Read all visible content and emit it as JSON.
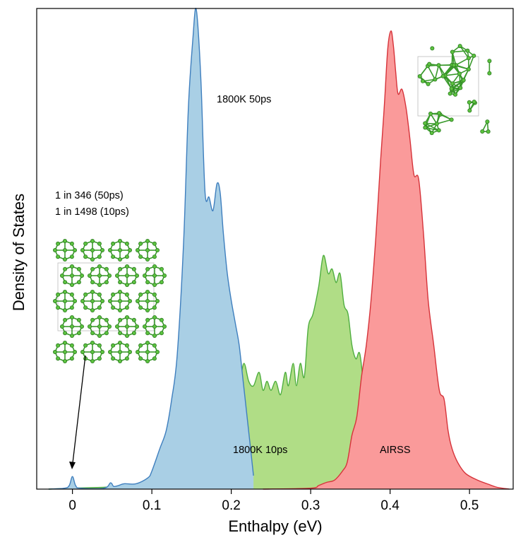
{
  "chart_data": {
    "type": "area",
    "xlabel": "Enthalpy (eV)",
    "ylabel": "Density of States",
    "xlim": [
      -0.045,
      0.555
    ],
    "ylim": [
      0,
      1.07
    ],
    "xticks": [
      0,
      0.1,
      0.2,
      0.3,
      0.4,
      0.5
    ],
    "xtick_labels": [
      "0",
      "0.1",
      "0.2",
      "0.3",
      "0.4",
      "0.5"
    ],
    "show_yticks": false,
    "series": [
      {
        "name": "1800K 10ps",
        "color": "#b0dd86",
        "stroke": "#4fae3f",
        "x": [
          -0.03,
          0.0,
          0.05,
          0.08,
          0.1,
          0.115,
          0.13,
          0.145,
          0.158,
          0.165,
          0.172,
          0.178,
          0.184,
          0.19,
          0.197,
          0.203,
          0.21,
          0.216,
          0.222,
          0.228,
          0.235,
          0.24,
          0.245,
          0.25,
          0.256,
          0.262,
          0.268,
          0.272,
          0.278,
          0.282,
          0.287,
          0.292,
          0.297,
          0.303,
          0.31,
          0.316,
          0.322,
          0.327,
          0.332,
          0.337,
          0.342,
          0.347,
          0.352,
          0.357,
          0.362,
          0.368,
          0.372,
          0.376
        ],
        "y": [
          0,
          0.002,
          0.005,
          0.01,
          0.015,
          0.03,
          0.06,
          0.2,
          0.31,
          0.3,
          0.27,
          0.3,
          0.29,
          0.31,
          0.27,
          0.28,
          0.24,
          0.28,
          0.24,
          0.23,
          0.26,
          0.22,
          0.24,
          0.22,
          0.24,
          0.21,
          0.26,
          0.23,
          0.28,
          0.23,
          0.28,
          0.25,
          0.36,
          0.39,
          0.45,
          0.52,
          0.48,
          0.49,
          0.46,
          0.48,
          0.41,
          0.39,
          0.32,
          0.29,
          0.3,
          0.2,
          0.1,
          0.02
        ]
      },
      {
        "name": "1800K 50ps",
        "color": "#a9cfe5",
        "stroke": "#3f7fbe",
        "x": [
          -0.03,
          -0.01,
          -0.004,
          0.0,
          0.004,
          0.01,
          0.04,
          0.048,
          0.052,
          0.058,
          0.065,
          0.08,
          0.095,
          0.1,
          0.11,
          0.118,
          0.125,
          0.132,
          0.14,
          0.146,
          0.152,
          0.155,
          0.158,
          0.162,
          0.167,
          0.172,
          0.177,
          0.182,
          0.186,
          0.19,
          0.195,
          0.2,
          0.205,
          0.21,
          0.215,
          0.22,
          0.228
        ],
        "y": [
          0,
          0.002,
          0.008,
          0.028,
          0.008,
          0.002,
          0.002,
          0.014,
          0.006,
          0.008,
          0.012,
          0.012,
          0.025,
          0.04,
          0.09,
          0.13,
          0.2,
          0.3,
          0.55,
          0.85,
          1.01,
          1.07,
          1.03,
          0.9,
          0.66,
          0.65,
          0.62,
          0.68,
          0.66,
          0.57,
          0.48,
          0.42,
          0.37,
          0.32,
          0.24,
          0.16,
          0.03
        ]
      },
      {
        "name": "AIRSS",
        "color": "#fa9a9a",
        "stroke": "#d6333a",
        "x": [
          0.24,
          0.3,
          0.31,
          0.32,
          0.33,
          0.34,
          0.346,
          0.352,
          0.358,
          0.364,
          0.37,
          0.376,
          0.382,
          0.388,
          0.393,
          0.397,
          0.401,
          0.404,
          0.407,
          0.41,
          0.415,
          0.42,
          0.425,
          0.43,
          0.436,
          0.442,
          0.448,
          0.455,
          0.462,
          0.468,
          0.473,
          0.478,
          0.485,
          0.495,
          0.51,
          0.525,
          0.535,
          0.55
        ],
        "y": [
          0,
          0.002,
          0.008,
          0.015,
          0.02,
          0.04,
          0.06,
          0.12,
          0.16,
          0.25,
          0.32,
          0.42,
          0.56,
          0.73,
          0.86,
          0.98,
          1.02,
          0.99,
          0.93,
          0.88,
          0.89,
          0.85,
          0.78,
          0.7,
          0.69,
          0.57,
          0.42,
          0.32,
          0.22,
          0.2,
          0.13,
          0.09,
          0.06,
          0.035,
          0.02,
          0.01,
          0.004,
          0
        ]
      }
    ],
    "annotations": [
      {
        "text": "1800K 50ps",
        "x": 0.155,
        "y": 0.9
      },
      {
        "text": "1800K 10ps",
        "x": 0.23,
        "y": 0.08
      },
      {
        "text": "AIRSS",
        "x": 0.382,
        "y": 0.08
      },
      {
        "text": "1 in 346 (50ps)",
        "x": -0.033,
        "y": 0.66
      },
      {
        "text": "1 in 1498 (10ps)",
        "x": -0.033,
        "y": 0.62
      }
    ]
  }
}
